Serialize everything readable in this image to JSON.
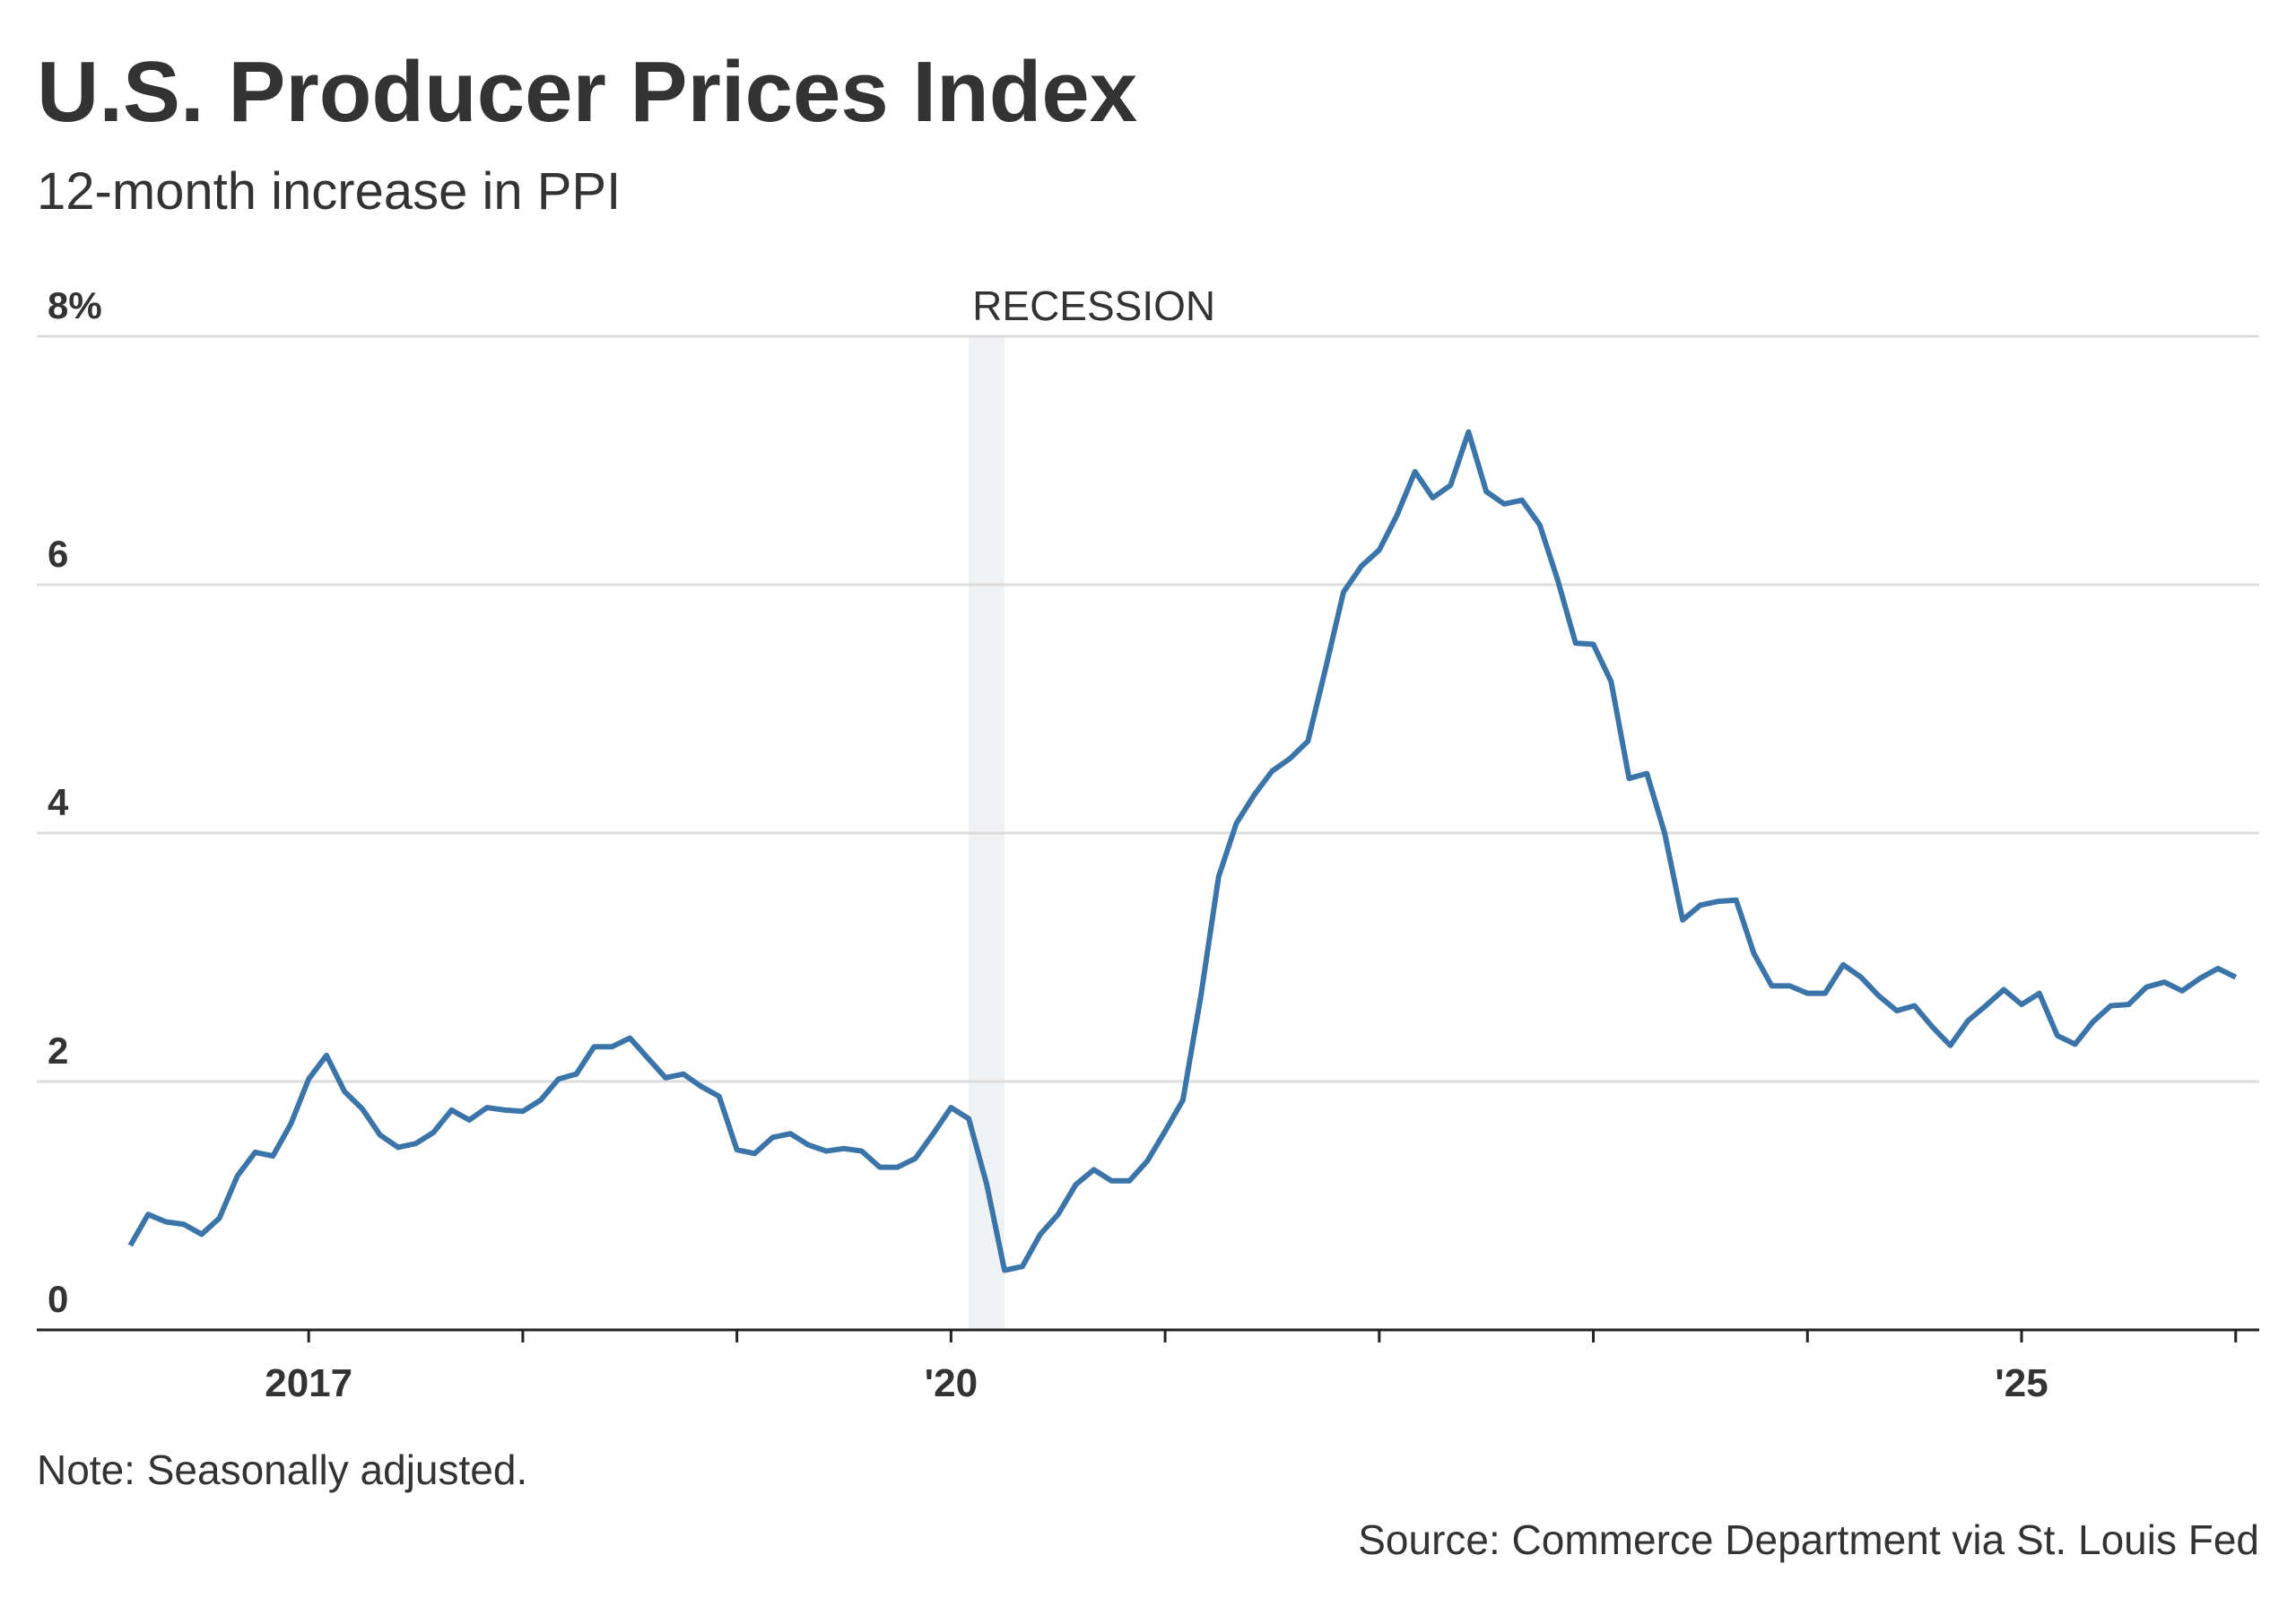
{
  "chart_data": {
    "type": "line",
    "title": "U.S. Producer Prices Index",
    "subtitle": "12-month increase in PPI",
    "note": "Note: Seasonally adjusted.",
    "source": "Source: Commerce Department via St. Louis Fed",
    "recession": {
      "label": "RECESSION",
      "x": [
        2020.083,
        2020.25
      ]
    },
    "xlim": [
      2015.73,
      2026.11
    ],
    "ylim": [
      0,
      8
    ],
    "xticks": [
      2017,
      {
        "value": 2020,
        "label": "'20"
      },
      {
        "value": 2025,
        "label": "'25"
      }
    ],
    "xminor_ticks": [
      2018,
      2019,
      2021,
      2022,
      2023,
      2024,
      2026
    ],
    "yticks": [
      0,
      2,
      4,
      6,
      {
        "value": 8,
        "label": "8%"
      }
    ],
    "grid": true,
    "x": [
      2016.167,
      2016.25,
      2016.333,
      2016.417,
      2016.5,
      2016.583,
      2016.667,
      2016.75,
      2016.833,
      2016.917,
      2017,
      2017.083,
      2017.167,
      2017.25,
      2017.333,
      2017.417,
      2017.5,
      2017.583,
      2017.667,
      2017.75,
      2017.833,
      2017.917,
      2018,
      2018.083,
      2018.167,
      2018.25,
      2018.333,
      2018.417,
      2018.5,
      2018.583,
      2018.667,
      2018.75,
      2018.833,
      2018.917,
      2019,
      2019.083,
      2019.167,
      2019.25,
      2019.333,
      2019.417,
      2019.5,
      2019.583,
      2019.667,
      2019.75,
      2019.833,
      2019.917,
      2020,
      2020.083,
      2020.167,
      2020.25,
      2020.333,
      2020.417,
      2020.5,
      2020.583,
      2020.667,
      2020.75,
      2020.833,
      2020.917,
      2021,
      2021.083,
      2021.167,
      2021.25,
      2021.333,
      2021.417,
      2021.5,
      2021.583,
      2021.667,
      2021.75,
      2021.833,
      2021.917,
      2022,
      2022.083,
      2022.167,
      2022.25,
      2022.333,
      2022.417,
      2022.5,
      2022.583,
      2022.667,
      2022.75,
      2022.833,
      2022.917,
      2023,
      2023.083,
      2023.167,
      2023.25,
      2023.333,
      2023.417,
      2023.5,
      2023.583,
      2023.667,
      2023.75,
      2023.833,
      2023.917,
      2024,
      2024.083,
      2024.167,
      2024.25,
      2024.333,
      2024.417,
      2024.5,
      2024.583,
      2024.667,
      2024.75,
      2024.833,
      2024.917,
      2025,
      2025.083,
      2025.167,
      2025.25,
      2025.333,
      2025.417,
      2025.5,
      2025.583,
      2025.667,
      2025.75,
      2025.833,
      2025.917,
      2026
    ],
    "series": [
      {
        "name": "PPI",
        "color": "#3a74a9",
        "values": [
          0.68,
          0.93,
          0.87,
          0.85,
          0.77,
          0.9,
          1.24,
          1.43,
          1.4,
          1.66,
          2.02,
          2.21,
          1.92,
          1.78,
          1.57,
          1.47,
          1.5,
          1.59,
          1.77,
          1.69,
          1.79,
          1.77,
          1.76,
          1.85,
          2.02,
          2.06,
          2.28,
          2.28,
          2.35,
          2.19,
          2.03,
          2.06,
          1.96,
          1.88,
          1.45,
          1.42,
          1.55,
          1.58,
          1.49,
          1.44,
          1.46,
          1.44,
          1.31,
          1.31,
          1.38,
          1.58,
          1.79,
          1.7,
          1.17,
          0.48,
          0.51,
          0.77,
          0.93,
          1.17,
          1.29,
          1.2,
          1.2,
          1.36,
          1.6,
          1.85,
          2.69,
          3.65,
          4.08,
          4.31,
          4.5,
          4.6,
          4.74,
          5.33,
          5.94,
          6.15,
          6.28,
          6.56,
          6.91,
          6.7,
          6.8,
          7.23,
          6.75,
          6.65,
          6.68,
          6.48,
          6.04,
          5.53,
          5.52,
          5.22,
          4.44,
          4.48,
          4.0,
          3.3,
          3.42,
          3.45,
          3.46,
          3.03,
          2.77,
          2.77,
          2.71,
          2.71,
          2.94,
          2.84,
          2.69,
          2.57,
          2.61,
          2.44,
          2.29,
          2.49,
          2.61,
          2.74,
          2.62,
          2.71,
          2.37,
          2.3,
          2.48,
          2.61,
          2.62,
          2.76,
          2.8,
          2.73,
          2.83,
          2.91,
          2.84
        ]
      }
    ]
  }
}
